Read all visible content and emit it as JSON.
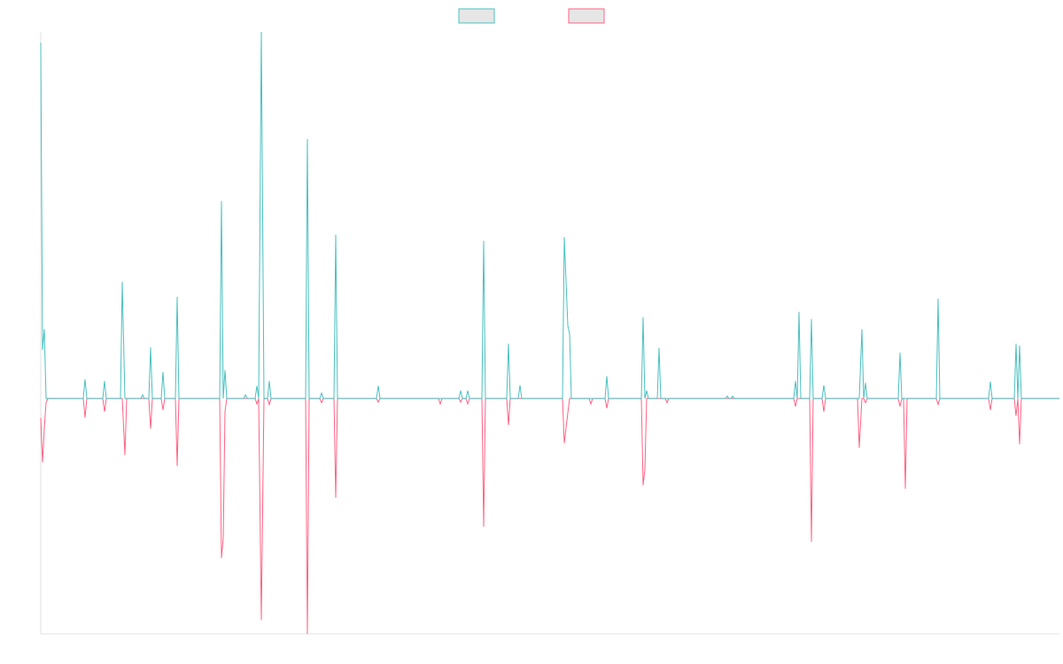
{
  "chart_data": {
    "type": "line",
    "legend": "top",
    "grid": false,
    "xlim": [
      46,
      1196
    ],
    "ylim": [
      -3.91,
      6.09
    ],
    "x": [
      46,
      48,
      50,
      52,
      54,
      94,
      96,
      98,
      116,
      118,
      120,
      136,
      138,
      141,
      143,
      159,
      161,
      163,
      168,
      170,
      172,
      182,
      184,
      186,
      198,
      200,
      202,
      248,
      250,
      252,
      254,
      256,
      275,
      277,
      279,
      288,
      290,
      292,
      295,
      298,
      302,
      304,
      306,
      345,
      347,
      349,
      361,
      363,
      365,
      377,
      379,
      381,
      425,
      427,
      429,
      495,
      497,
      499,
      518,
      520,
      522,
      526,
      528,
      530,
      544,
      546,
      548,
      572,
      574,
      576,
      585,
      587,
      589,
      635,
      637,
      641,
      643,
      645,
      665,
      667,
      669,
      683,
      685,
      687,
      724,
      726,
      728,
      730,
      732,
      742,
      744,
      746,
      751,
      753,
      755,
      819,
      821,
      823,
      825,
      827,
      829,
      896,
      898,
      900,
      902,
      904,
      914,
      916,
      918,
      928,
      930,
      932,
      968,
      970,
      973,
      975,
      977,
      979,
      1014,
      1016,
      1018,
      1020,
      1022,
      1024,
      1057,
      1059,
      1061,
      1116,
      1118,
      1120,
      1145,
      1147,
      1149,
      1151,
      1153,
      1196
    ],
    "series": [
      {
        "color": "#4bc0c0",
        "values": [
          5.91,
          0.81,
          1.15,
          0,
          0,
          0,
          0.32,
          0,
          0,
          0.29,
          0,
          0,
          1.94,
          0,
          0,
          0,
          0.06,
          0,
          0,
          0.85,
          0,
          0,
          0.44,
          0,
          0,
          1.69,
          0,
          0,
          3.28,
          0,
          0.47,
          0,
          0,
          0.06,
          0,
          0,
          0.21,
          0,
          6.09,
          0,
          0,
          0.29,
          0,
          0,
          4.31,
          0,
          0,
          0.09,
          0,
          0,
          2.72,
          0,
          0,
          0.21,
          0,
          0,
          0,
          0,
          0,
          0.13,
          0,
          0,
          0.13,
          0,
          0,
          2.62,
          0,
          0,
          0.91,
          0,
          0,
          0.22,
          0,
          0,
          2.68,
          1.21,
          1.07,
          0,
          0,
          0,
          0,
          0,
          0.37,
          0,
          0,
          1.35,
          0,
          0.13,
          0,
          0,
          0.84,
          0,
          0,
          0,
          0,
          0,
          0.04,
          0,
          0,
          0.04,
          0,
          0,
          0.29,
          0,
          1.44,
          0,
          0,
          1.32,
          0,
          0,
          0.22,
          0,
          0,
          0,
          1.15,
          0,
          0.26,
          0,
          0,
          0.76,
          0,
          0,
          0,
          0,
          0,
          1.66,
          0,
          0,
          0.28,
          0,
          0,
          0.91,
          0,
          0.88,
          0,
          0
        ]
      },
      {
        "color": "#ff6384",
        "values": [
          -0.32,
          -1.06,
          -0.5,
          -0.07,
          0,
          0,
          -0.32,
          0,
          0,
          -0.22,
          0,
          0,
          0,
          -0.94,
          0,
          0,
          0,
          0,
          0,
          -0.5,
          0,
          0,
          -0.19,
          0,
          0,
          -1.12,
          0,
          0,
          -2.65,
          -2.32,
          -0.22,
          0,
          0,
          0,
          0,
          0,
          -0.09,
          0,
          -3.68,
          0,
          0,
          -0.1,
          0,
          0,
          -3.91,
          0,
          0,
          -0.07,
          0,
          0,
          -1.65,
          0,
          0,
          -0.06,
          0,
          0,
          -0.09,
          0,
          0,
          -0.06,
          0,
          0,
          -0.09,
          0,
          0,
          -2.13,
          0,
          0,
          -0.44,
          0,
          0,
          0,
          0,
          0,
          -0.74,
          -0.24,
          0,
          0,
          0,
          -0.09,
          0,
          0,
          -0.16,
          0,
          0,
          -1.44,
          -1.18,
          0,
          0,
          0,
          0,
          0,
          0,
          -0.07,
          0,
          0,
          0,
          0,
          0,
          0,
          0,
          0,
          -0.13,
          0,
          0,
          0,
          0,
          -2.38,
          0,
          0,
          -0.22,
          0,
          0,
          -0.82,
          0,
          0,
          -0.07,
          0,
          0,
          -0.13,
          0,
          0,
          -1.5,
          0,
          0,
          -0.1,
          0,
          0,
          -0.19,
          0,
          0,
          -0.29,
          0,
          -0.76,
          0,
          0
        ]
      }
    ]
  }
}
